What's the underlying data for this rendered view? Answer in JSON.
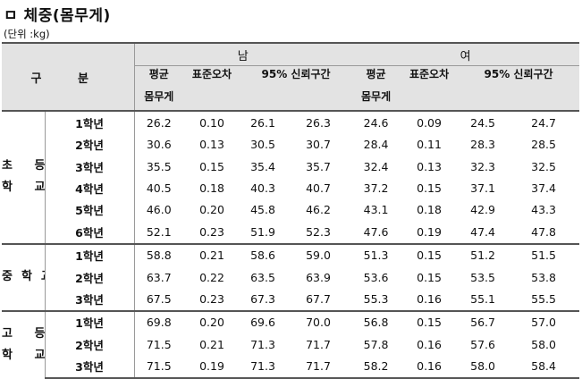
{
  "title": "ㅁ 체중(몸무게)",
  "unit": "(단위 :kg)",
  "header": {
    "gubun": "구 분",
    "male": "남",
    "female": "여",
    "mean_line1": "평균",
    "mean_line2": "몸무게",
    "se": "표준오차",
    "ci": "95% 신뢰구간"
  },
  "groups": [
    {
      "label_line1": "초 등",
      "label_line2": "학 교",
      "rows": [
        {
          "grade": "1학년",
          "m": [
            "26.2",
            "0.10",
            "26.1",
            "26.3"
          ],
          "f": [
            "24.6",
            "0.09",
            "24.5",
            "24.7"
          ]
        },
        {
          "grade": "2학년",
          "m": [
            "30.6",
            "0.13",
            "30.5",
            "30.7"
          ],
          "f": [
            "28.4",
            "0.11",
            "28.3",
            "28.5"
          ]
        },
        {
          "grade": "3학년",
          "m": [
            "35.5",
            "0.15",
            "35.4",
            "35.7"
          ],
          "f": [
            "32.4",
            "0.13",
            "32.3",
            "32.5"
          ]
        },
        {
          "grade": "4학년",
          "m": [
            "40.5",
            "0.18",
            "40.3",
            "40.7"
          ],
          "f": [
            "37.2",
            "0.15",
            "37.1",
            "37.4"
          ]
        },
        {
          "grade": "5학년",
          "m": [
            "46.0",
            "0.20",
            "45.8",
            "46.2"
          ],
          "f": [
            "43.1",
            "0.18",
            "42.9",
            "43.3"
          ]
        },
        {
          "grade": "6학년",
          "m": [
            "52.1",
            "0.23",
            "51.9",
            "52.3"
          ],
          "f": [
            "47.6",
            "0.19",
            "47.4",
            "47.8"
          ]
        }
      ]
    },
    {
      "label_line1": "중학교",
      "label_line2": "",
      "rows": [
        {
          "grade": "1학년",
          "m": [
            "58.8",
            "0.21",
            "58.6",
            "59.0"
          ],
          "f": [
            "51.3",
            "0.15",
            "51.2",
            "51.5"
          ]
        },
        {
          "grade": "2학년",
          "m": [
            "63.7",
            "0.22",
            "63.5",
            "63.9"
          ],
          "f": [
            "53.6",
            "0.15",
            "53.5",
            "53.8"
          ]
        },
        {
          "grade": "3학년",
          "m": [
            "67.5",
            "0.23",
            "67.3",
            "67.7"
          ],
          "f": [
            "55.3",
            "0.16",
            "55.1",
            "55.5"
          ]
        }
      ]
    },
    {
      "label_line1": "고 등",
      "label_line2": "학 교",
      "rows": [
        {
          "grade": "1학년",
          "m": [
            "69.8",
            "0.20",
            "69.6",
            "70.0"
          ],
          "f": [
            "56.8",
            "0.15",
            "56.7",
            "57.0"
          ]
        },
        {
          "grade": "2학년",
          "m": [
            "71.5",
            "0.21",
            "71.3",
            "71.7"
          ],
          "f": [
            "57.8",
            "0.16",
            "57.6",
            "58.0"
          ]
        },
        {
          "grade": "3학년",
          "m": [
            "71.5",
            "0.19",
            "71.3",
            "71.7"
          ],
          "f": [
            "58.2",
            "0.16",
            "58.0",
            "58.4"
          ]
        }
      ]
    }
  ]
}
